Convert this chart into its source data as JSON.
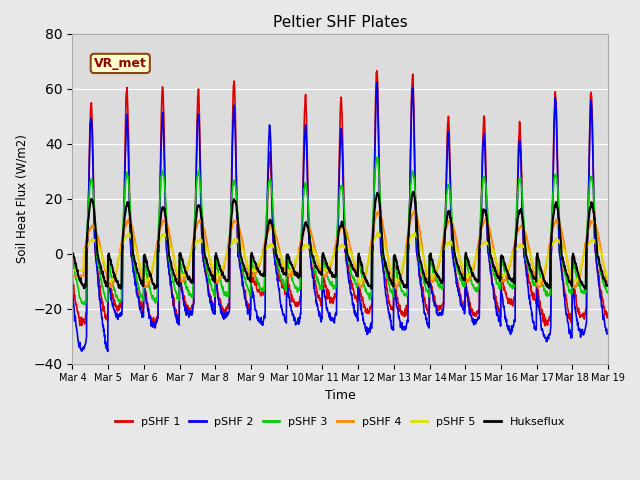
{
  "title": "Peltier SHF Plates",
  "xlabel": "Time",
  "ylabel": "Soil Heat Flux (W/m2)",
  "ylim": [
    -40,
    80
  ],
  "bg_color": "#e8e8e8",
  "plot_bg": "#dcdcdc",
  "series": [
    {
      "label": "pSHF 1",
      "color": "#dd0000",
      "lw": 1.2
    },
    {
      "label": "pSHF 2",
      "color": "#0000ee",
      "lw": 1.2
    },
    {
      "label": "pSHF 3",
      "color": "#00cc00",
      "lw": 1.2
    },
    {
      "label": "pSHF 4",
      "color": "#ff8800",
      "lw": 1.4
    },
    {
      "label": "pSHF 5",
      "color": "#dddd00",
      "lw": 1.4
    },
    {
      "label": "Hukseflux",
      "color": "#000000",
      "lw": 1.5
    }
  ],
  "tick_labels": [
    "Mar 4",
    "Mar 5",
    "Mar 6",
    "Mar 7",
    "Mar 8",
    "Mar 9",
    "Mar 10",
    "Mar 11",
    "Mar 12",
    "Mar 13",
    "Mar 14",
    "Mar 15",
    "Mar 16",
    "Mar 17",
    "Mar 18",
    "Mar 19"
  ],
  "yticks": [
    -40,
    -20,
    0,
    20,
    40,
    60,
    80
  ],
  "annotation_text": "VR_met",
  "peaks1": [
    55,
    60,
    61,
    59,
    63,
    37,
    57,
    57,
    67,
    65,
    49,
    50,
    47,
    59,
    59
  ],
  "mins1": [
    -25,
    -20,
    -25,
    -20,
    -21,
    -14,
    -18,
    -17,
    -21,
    -22,
    -20,
    -22,
    -18,
    -25,
    -23
  ],
  "peaks2": [
    50,
    49,
    50,
    51,
    54,
    46,
    46,
    45,
    62,
    60,
    43,
    43,
    41,
    56,
    55
  ],
  "mins2": [
    -35,
    -23,
    -26,
    -22,
    -23,
    -25,
    -25,
    -24,
    -28,
    -27,
    -22,
    -25,
    -28,
    -31,
    -29
  ],
  "peaks3": [
    27,
    29,
    30,
    30,
    27,
    27,
    25,
    25,
    35,
    30,
    25,
    28,
    28,
    29,
    28
  ],
  "mins3": [
    -18,
    -17,
    -17,
    -15,
    -15,
    -13,
    -13,
    -12,
    -15,
    -15,
    -12,
    -13,
    -12,
    -15,
    -14
  ],
  "peaks4": [
    10,
    12,
    12,
    12,
    12,
    10,
    10,
    10,
    15,
    15,
    12,
    12,
    10,
    12,
    12
  ],
  "mins4": [
    -10,
    -12,
    -12,
    -10,
    -10,
    -8,
    -8,
    -8,
    -12,
    -12,
    -10,
    -10,
    -10,
    -12,
    -12
  ],
  "peaks5": [
    5,
    7,
    7,
    5,
    5,
    3,
    3,
    3,
    7,
    7,
    4,
    4,
    3,
    5,
    5
  ],
  "mins5": [
    -8,
    -10,
    -10,
    -8,
    -8,
    -6,
    -6,
    -6,
    -10,
    -10,
    -8,
    -8,
    -8,
    -10,
    -10
  ],
  "peaks_h": [
    20,
    18,
    17,
    18,
    20,
    12,
    11,
    11,
    22,
    22,
    15,
    16,
    16,
    18,
    18
  ],
  "mins_h": [
    -12,
    -12,
    -12,
    -10,
    -10,
    -8,
    -8,
    -8,
    -12,
    -12,
    -10,
    -10,
    -10,
    -12,
    -12
  ]
}
